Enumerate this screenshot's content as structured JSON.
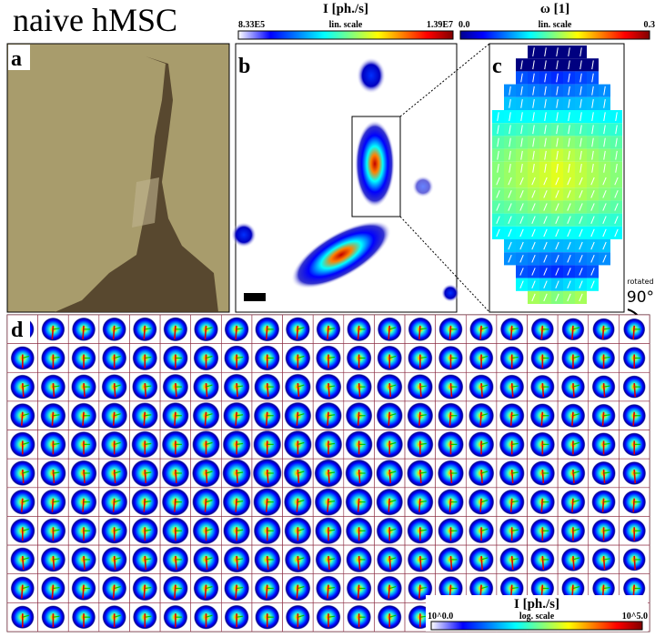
{
  "title": "naive hMSC",
  "colorbars": [
    {
      "label": "I [ph./s]",
      "min": "8.33E5",
      "scale": "lin. scale",
      "max": "1.39E7"
    },
    {
      "label": "ω [1]",
      "min": "0.0",
      "scale": "lin. scale",
      "max": "0.3"
    },
    {
      "label": "I [ph./s]",
      "min": "10^0.0",
      "scale": "log. scale",
      "max": "10^5.0"
    }
  ],
  "panels": [
    "a",
    "b",
    "c",
    "d"
  ],
  "rotation": {
    "note": "rotated",
    "angle": "90°"
  }
}
